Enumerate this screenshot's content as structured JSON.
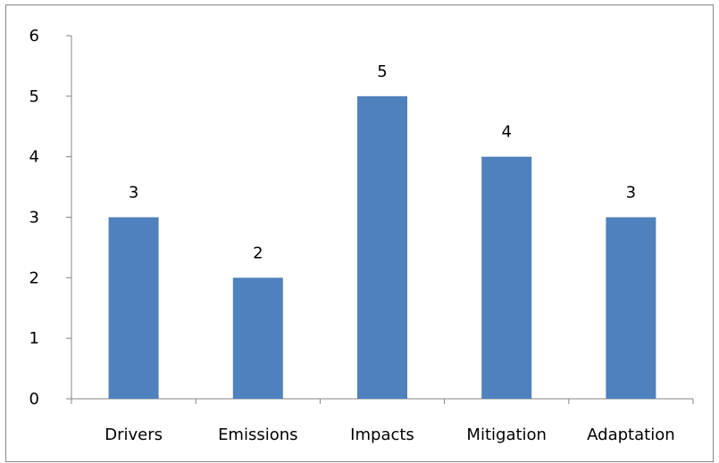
{
  "chart_data": {
    "type": "bar",
    "categories": [
      "Drivers",
      "Emissions",
      "Impacts",
      "Mitigation",
      "Adaptation"
    ],
    "values": [
      3,
      2,
      5,
      4,
      3
    ],
    "data_labels": [
      "3",
      "2",
      "5",
      "4",
      "3"
    ],
    "title": "",
    "xlabel": "",
    "ylabel": "",
    "ylim": [
      0,
      6
    ],
    "y_ticks": [
      0,
      1,
      2,
      3,
      4,
      5,
      6
    ],
    "y_tick_labels": [
      "0",
      "1",
      "2",
      "3",
      "4",
      "5",
      "6"
    ],
    "grid": false,
    "legend": "none",
    "bar_color": "#4f81bd",
    "axis_color": "#868686"
  }
}
